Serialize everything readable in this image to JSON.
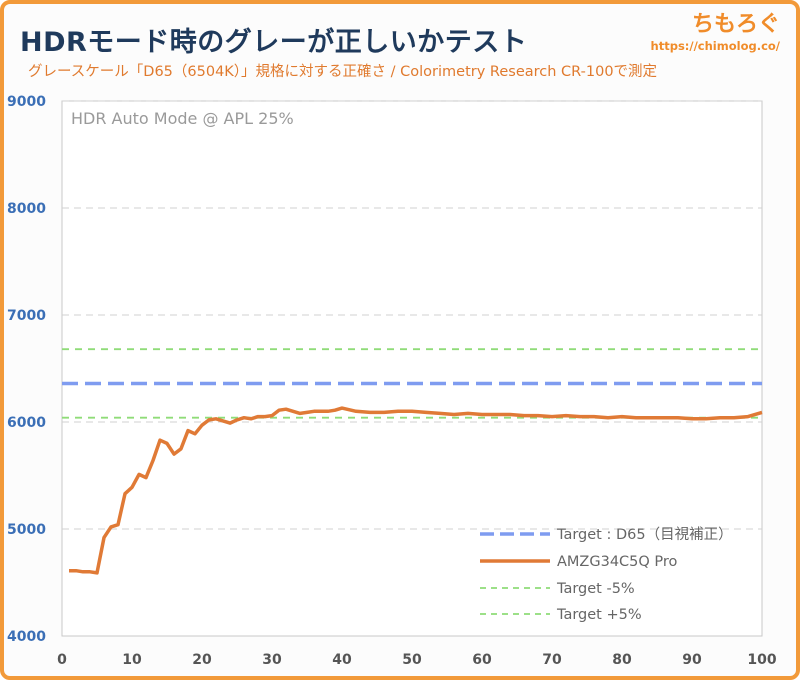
{
  "header": {
    "title": "HDRモード時のグレーが正しいかテスト",
    "subtitle": "グレースケール「D65（6504K）」規格に対する正確さ / Colorimetry Research CR-100で測定",
    "site_name": "ちもろぐ",
    "site_url": "https://chimolog.co/"
  },
  "colors": {
    "frame": "#f29a3a",
    "title": "#1f3a5c",
    "accent": "#e07a2e",
    "y_tick": "#3b6fb6",
    "x_tick": "#555555",
    "grid": "#d0d0d0",
    "target": "#7f9cf0",
    "measured": "#e07a36",
    "tolerance": "#8fdc78"
  },
  "chart_data": {
    "type": "line",
    "annotation": "HDR Auto Mode @ APL 25%",
    "xlim": [
      0,
      100
    ],
    "ylim": [
      4000,
      9000
    ],
    "x_ticks": [
      0,
      10,
      20,
      30,
      40,
      50,
      60,
      70,
      80,
      90,
      100
    ],
    "y_ticks": [
      4000,
      5000,
      6000,
      7000,
      8000,
      9000
    ],
    "grid": "horizontal dashed",
    "legend_position": "bottom-right",
    "series": [
      {
        "name": "Target : D65（目視補正）",
        "style": "dashed",
        "color": "#7f9cf0",
        "x": [
          0,
          100
        ],
        "y": [
          6360,
          6360
        ]
      },
      {
        "name": "AMZG34C5Q Pro",
        "style": "solid",
        "color": "#e07a36",
        "x": [
          1,
          2,
          3,
          4,
          5,
          6,
          7,
          8,
          9,
          10,
          11,
          12,
          13,
          14,
          15,
          16,
          17,
          18,
          19,
          20,
          21,
          22,
          23,
          24,
          25,
          26,
          27,
          28,
          29,
          30,
          31,
          32,
          33,
          34,
          35,
          36,
          37,
          38,
          39,
          40,
          42,
          44,
          46,
          48,
          50,
          52,
          54,
          56,
          58,
          60,
          62,
          64,
          66,
          68,
          70,
          72,
          74,
          76,
          78,
          80,
          82,
          84,
          86,
          88,
          90,
          92,
          94,
          96,
          98,
          100
        ],
        "y": [
          4610,
          4610,
          4600,
          4600,
          4590,
          4920,
          5020,
          5040,
          5330,
          5390,
          5510,
          5480,
          5640,
          5830,
          5800,
          5700,
          5750,
          5920,
          5890,
          5970,
          6020,
          6030,
          6010,
          5990,
          6020,
          6040,
          6030,
          6050,
          6050,
          6060,
          6110,
          6120,
          6100,
          6080,
          6090,
          6100,
          6100,
          6100,
          6110,
          6130,
          6100,
          6090,
          6090,
          6100,
          6100,
          6090,
          6080,
          6070,
          6080,
          6070,
          6070,
          6070,
          6060,
          6060,
          6050,
          6060,
          6050,
          6050,
          6040,
          6050,
          6040,
          6040,
          6040,
          6040,
          6030,
          6030,
          6040,
          6040,
          6050,
          6090
        ]
      },
      {
        "name": "Target -5%",
        "style": "dashed",
        "color": "#8fdc78",
        "x": [
          0,
          100
        ],
        "y": [
          6040,
          6040
        ]
      },
      {
        "name": "Target +5%",
        "style": "dashed",
        "color": "#8fdc78",
        "x": [
          0,
          100
        ],
        "y": [
          6680,
          6680
        ]
      }
    ]
  }
}
